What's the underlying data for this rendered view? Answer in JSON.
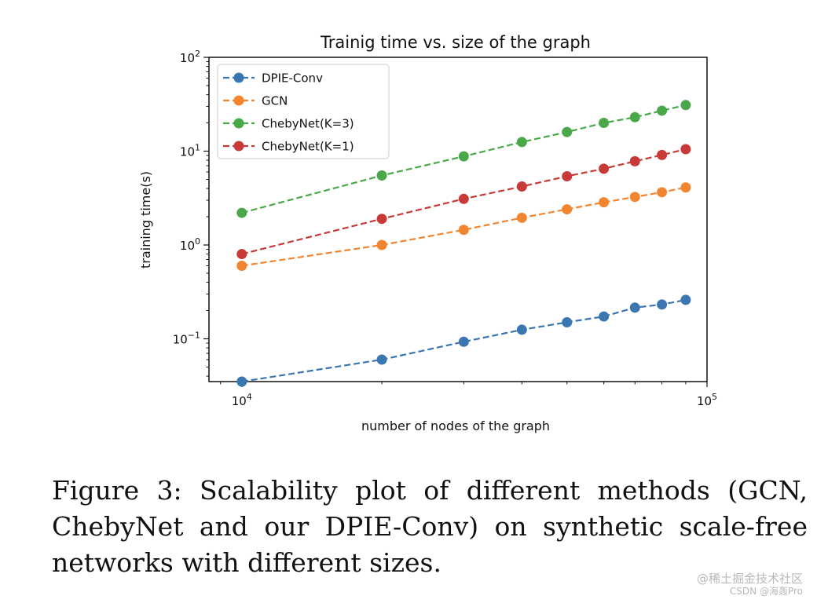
{
  "chart_data": {
    "type": "line",
    "title": "Trainig time vs. size of the graph",
    "xlabel": "number of nodes of the graph",
    "ylabel": "training time(s)",
    "xscale": "log",
    "yscale": "log",
    "xlim": [
      8500,
      100000
    ],
    "ylim": [
      0.035,
      100
    ],
    "xticks": [
      {
        "value": 10000,
        "base": "10",
        "exp": "4"
      },
      {
        "value": 100000,
        "base": "10",
        "exp": "5"
      }
    ],
    "yticks": [
      {
        "value": 0.1,
        "base": "10",
        "exp": "−1"
      },
      {
        "value": 1,
        "base": "10",
        "exp": "0"
      },
      {
        "value": 10,
        "base": "10",
        "exp": "1"
      },
      {
        "value": 100,
        "base": "10",
        "exp": "2"
      }
    ],
    "legend_position": "upper-left",
    "x": [
      10000,
      20000,
      30000,
      40000,
      50000,
      60000,
      70000,
      80000,
      90000
    ],
    "series": [
      {
        "name": "DPIE-Conv",
        "color": "#3a76b0",
        "values": [
          0.035,
          0.06,
          0.093,
          0.125,
          0.15,
          0.173,
          0.215,
          0.232,
          0.26
        ]
      },
      {
        "name": "GCN",
        "color": "#f28530",
        "values": [
          0.6,
          1.0,
          1.45,
          1.95,
          2.4,
          2.85,
          3.25,
          3.65,
          4.1
        ]
      },
      {
        "name": "ChebyNet(K=3)",
        "color": "#4aa84a",
        "values": [
          2.2,
          5.5,
          8.8,
          12.5,
          16,
          20,
          23,
          27,
          31
        ]
      },
      {
        "name": "ChebyNet(K=1)",
        "color": "#c83a37",
        "values": [
          0.8,
          1.9,
          3.1,
          4.2,
          5.4,
          6.5,
          7.8,
          9.1,
          10.5
        ]
      }
    ]
  },
  "caption": "Figure 3: Scalability plot of different methods (GCN, ChebyNet and our DPIE-Conv) on synthetic scale-free networks with different sizes.",
  "watermark": {
    "line1": "@稀土掘金技术社区",
    "line2": "CSDN @海轰Pro"
  }
}
